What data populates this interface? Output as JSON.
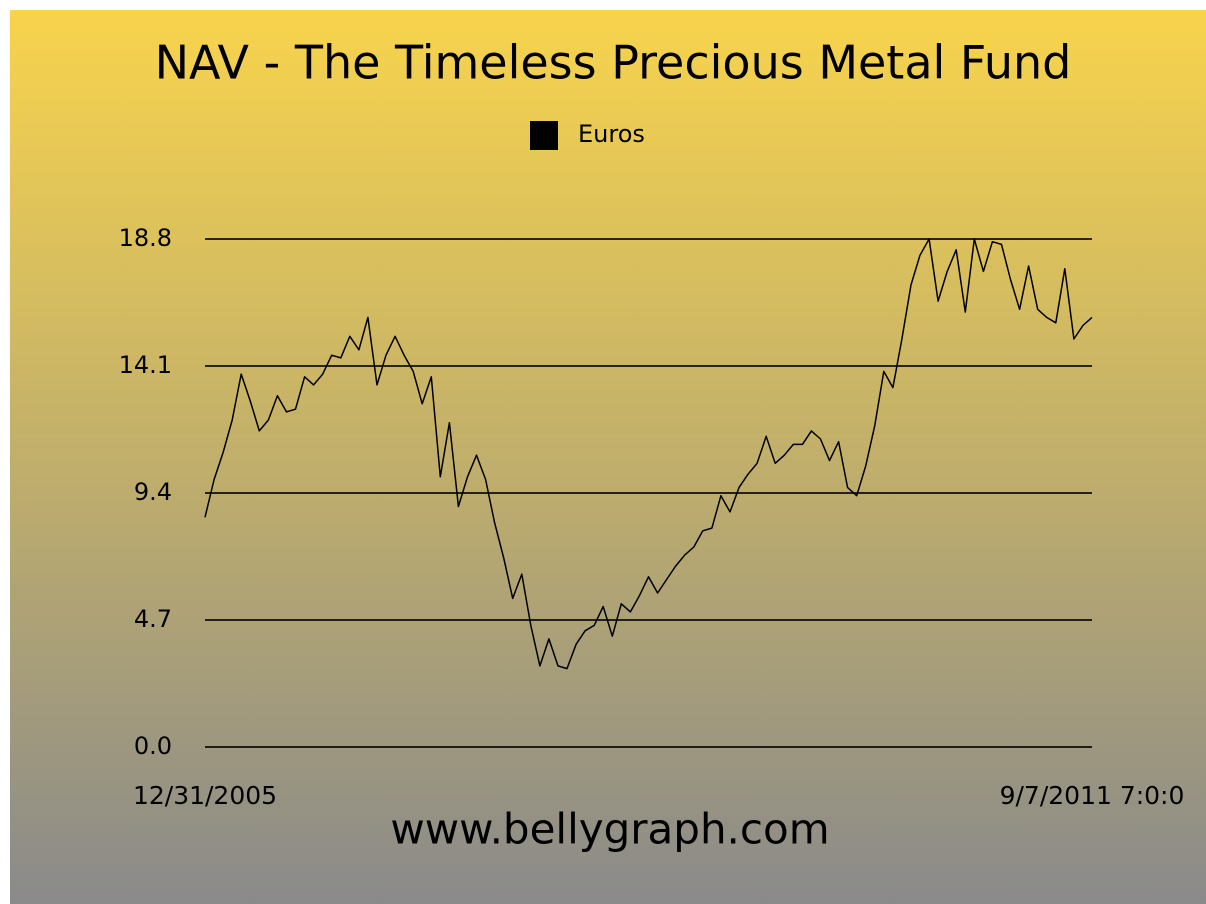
{
  "chart_data": {
    "type": "line",
    "title": "NAV - The Timeless Precious Metal Fund",
    "footer": "www.bellygraph.com",
    "categories": [
      "12/31/2005",
      null,
      null,
      null,
      null,
      null,
      null,
      null,
      null,
      null,
      null,
      null,
      null,
      null,
      null,
      null,
      null,
      null,
      null,
      null,
      null,
      null,
      null,
      null,
      null,
      null,
      null,
      null,
      null,
      null,
      null,
      null,
      null,
      null,
      null,
      null,
      null,
      null,
      null,
      null,
      null,
      null,
      null,
      null,
      null,
      null,
      null,
      null,
      null,
      null,
      null,
      null,
      null,
      null,
      null,
      null,
      null,
      null,
      null,
      null,
      null,
      null,
      null,
      null,
      null,
      null,
      null,
      null,
      null,
      null,
      null,
      null,
      null,
      null,
      null,
      null,
      null,
      null,
      null,
      null,
      null,
      null,
      null,
      null,
      null,
      null,
      null,
      null,
      null,
      null,
      null,
      null,
      null,
      null,
      null,
      null,
      null,
      null,
      "9/7/2011 7:0:0"
    ],
    "series": [
      {
        "name": "Euros",
        "color": "#000000",
        "values": [
          8.5,
          9.9,
          10.9,
          12.1,
          13.8,
          12.8,
          11.7,
          12.1,
          13.0,
          12.4,
          12.5,
          13.7,
          13.4,
          13.8,
          14.5,
          14.4,
          15.2,
          14.7,
          15.9,
          13.4,
          14.5,
          15.2,
          14.5,
          13.9,
          12.7,
          13.7,
          10.0,
          12.0,
          8.9,
          10.0,
          10.8,
          9.9,
          8.3,
          7.0,
          5.5,
          6.4,
          4.5,
          3.0,
          4.0,
          3.0,
          2.9,
          3.8,
          4.3,
          4.5,
          5.2,
          4.1,
          5.3,
          5.0,
          5.6,
          6.3,
          5.7,
          6.2,
          6.7,
          7.1,
          7.4,
          8.0,
          8.1,
          9.3,
          8.7,
          9.6,
          10.1,
          10.5,
          11.5,
          10.5,
          10.8,
          11.2,
          11.2,
          11.7,
          11.4,
          10.6,
          11.3,
          9.6,
          9.3,
          10.4,
          11.9,
          13.9,
          13.3,
          15.1,
          17.1,
          18.2,
          18.8,
          16.5,
          17.6,
          18.4,
          16.1,
          18.8,
          17.6,
          18.7,
          18.6,
          17.3,
          16.2,
          17.8,
          16.2,
          15.9,
          15.7,
          17.7,
          15.1,
          15.6,
          15.9
        ]
      }
    ],
    "ylim": [
      0,
      18.8
    ],
    "yticks": [
      {
        "value": 0,
        "label": "0.0"
      },
      4.7,
      9.4,
      14.1,
      18.8
    ],
    "grid": true
  }
}
